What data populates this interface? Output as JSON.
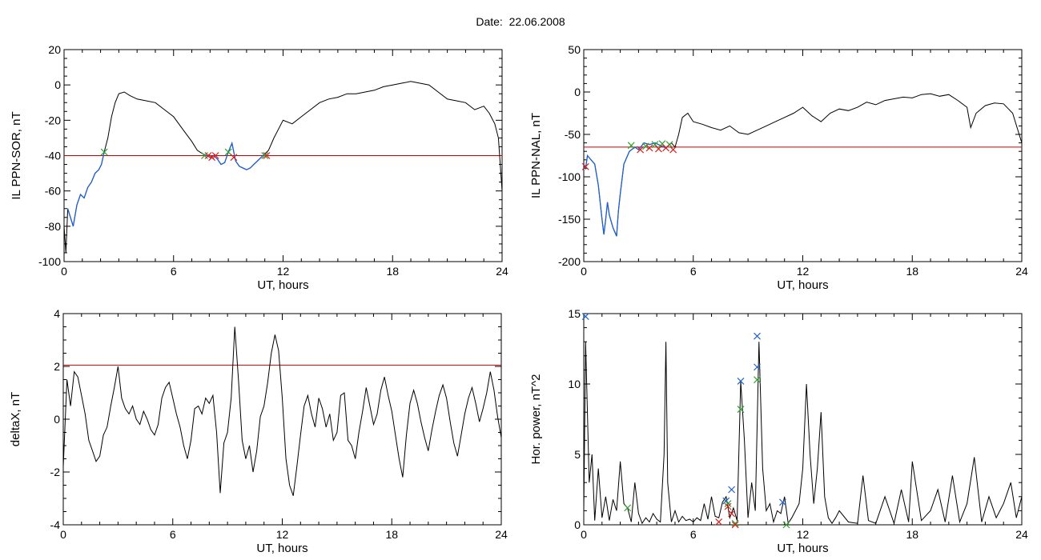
{
  "figure": {
    "title": "Date:  22.06.2008"
  },
  "colors": {
    "trace": "#000000",
    "threshold": "#cc0000",
    "segment": "#1f5fcf",
    "marker_green": "#2fa02f",
    "marker_red": "#d62020",
    "marker_blue": "#2060d0"
  },
  "chart_data": [
    {
      "type": "line",
      "panel": "top-left",
      "xlabel": "UT, hours",
      "ylabel": "IL PPN-SOR, nT",
      "xlim": [
        0,
        24
      ],
      "ylim": [
        -100,
        20
      ],
      "xticks": [
        0,
        6,
        12,
        18,
        24
      ],
      "yticks": [
        -100,
        -80,
        -60,
        -40,
        -20,
        0,
        20
      ],
      "grid": false,
      "threshold": -40,
      "series": [
        {
          "x": [
            0,
            0.1,
            0.2,
            0.35,
            0.5,
            0.7,
            0.9,
            1.1,
            1.3,
            1.5,
            1.7,
            1.9,
            2.05,
            2.2,
            2.4,
            2.6,
            2.8,
            3.0,
            3.3,
            3.6,
            4.0,
            4.5,
            5.0,
            5.5,
            6.0,
            6.5,
            7.0,
            7.3,
            7.6,
            7.8,
            8.0,
            8.2,
            8.4,
            8.6,
            8.8,
            9.0,
            9.2,
            9.4,
            9.6,
            9.8,
            10.0,
            10.2,
            10.4,
            10.6,
            10.8,
            11.0,
            11.2,
            11.5,
            11.8,
            12.0,
            12.5,
            13.0,
            13.5,
            14.0,
            14.5,
            15.0,
            15.5,
            16.0,
            16.5,
            17.0,
            17.5,
            18.0,
            18.5,
            19.0,
            19.5,
            20.0,
            20.5,
            21.0,
            21.5,
            22.0,
            22.5,
            23.0,
            23.3,
            23.6,
            23.8,
            24.0
          ],
          "y": [
            -80,
            -95,
            -70,
            -75,
            -80,
            -68,
            -62,
            -64,
            -58,
            -55,
            -50,
            -48,
            -45,
            -38,
            -30,
            -18,
            -10,
            -5,
            -4,
            -6,
            -8,
            -9,
            -10,
            -14,
            -18,
            -25,
            -32,
            -37,
            -39,
            -40,
            -41,
            -40,
            -42,
            -45,
            -44,
            -38,
            -33,
            -43,
            -46,
            -47,
            -48,
            -47,
            -45,
            -43,
            -41,
            -39,
            -37,
            -30,
            -24,
            -20,
            -22,
            -18,
            -14,
            -10,
            -8,
            -7,
            -5,
            -5,
            -4,
            -3,
            -1,
            0,
            1,
            2,
            1,
            0,
            -4,
            -8,
            -9,
            -10,
            -14,
            -12,
            -16,
            -22,
            -30,
            -60
          ]
        }
      ],
      "segments": [
        [
          0.2,
          2.2
        ],
        [
          7.6,
          11.0
        ]
      ],
      "markers": {
        "green_x": [
          [
            2.2,
            -38
          ],
          [
            7.7,
            -40
          ],
          [
            9.0,
            -38
          ],
          [
            11.0,
            -40
          ]
        ],
        "red_x": [
          [
            7.9,
            -40
          ],
          [
            8.1,
            -41
          ],
          [
            8.3,
            -40
          ],
          [
            9.3,
            -41
          ],
          [
            11.1,
            -40
          ]
        ]
      }
    },
    {
      "type": "line",
      "panel": "top-right",
      "xlabel": "UT, hours",
      "ylabel": "IL PPN-NAL, nT",
      "xlim": [
        0,
        24
      ],
      "ylim": [
        -200,
        50
      ],
      "xticks": [
        0,
        6,
        12,
        18,
        24
      ],
      "yticks": [
        -200,
        -150,
        -100,
        -50,
        0,
        50
      ],
      "grid": false,
      "threshold": -65,
      "series": [
        {
          "x": [
            0,
            0.1,
            0.2,
            0.4,
            0.6,
            0.8,
            1.0,
            1.1,
            1.2,
            1.3,
            1.4,
            1.6,
            1.8,
            1.9,
            2.0,
            2.2,
            2.5,
            2.8,
            3.0,
            3.3,
            3.6,
            3.9,
            4.2,
            4.5,
            4.8,
            5.0,
            5.2,
            5.4,
            5.7,
            6.0,
            6.5,
            7.0,
            7.5,
            8.0,
            8.5,
            9.0,
            9.5,
            10.0,
            10.5,
            11.0,
            11.5,
            12.0,
            12.5,
            13.0,
            13.5,
            14.0,
            14.5,
            15.0,
            15.5,
            16.0,
            16.5,
            17.0,
            17.5,
            18.0,
            18.5,
            19.0,
            19.5,
            20.0,
            20.5,
            21.0,
            21.2,
            21.5,
            22.0,
            22.5,
            23.0,
            23.5,
            24.0
          ],
          "y": [
            -85,
            -90,
            -75,
            -80,
            -85,
            -110,
            -150,
            -168,
            -150,
            -130,
            -145,
            -160,
            -170,
            -140,
            -120,
            -85,
            -70,
            -65,
            -68,
            -60,
            -62,
            -60,
            -63,
            -66,
            -60,
            -65,
            -50,
            -30,
            -25,
            -35,
            -38,
            -42,
            -45,
            -40,
            -48,
            -50,
            -45,
            -40,
            -35,
            -30,
            -25,
            -18,
            -28,
            -35,
            -25,
            -20,
            -22,
            -18,
            -12,
            -15,
            -10,
            -8,
            -6,
            -7,
            -3,
            -2,
            -5,
            -3,
            -10,
            -18,
            -42,
            -25,
            -16,
            -13,
            -14,
            -25,
            -60
          ]
        }
      ],
      "segments": [
        [
          0,
          4.9
        ]
      ],
      "markers": {
        "green_x": [
          [
            2.6,
            -63
          ],
          [
            3.4,
            -64
          ],
          [
            3.9,
            -62
          ],
          [
            4.3,
            -61
          ],
          [
            4.7,
            -62
          ]
        ],
        "red_x": [
          [
            0.1,
            -88
          ],
          [
            3.1,
            -68
          ],
          [
            3.6,
            -66
          ],
          [
            4.1,
            -67
          ],
          [
            4.5,
            -66
          ],
          [
            4.9,
            -68
          ]
        ]
      }
    },
    {
      "type": "line",
      "panel": "bottom-left",
      "xlabel": "UT, hours",
      "ylabel": "deltaX, nT",
      "xlim": [
        0,
        24
      ],
      "ylim": [
        -4,
        4
      ],
      "xticks": [
        0,
        6,
        12,
        18,
        24
      ],
      "yticks": [
        -4,
        -2,
        0,
        2,
        4
      ],
      "grid": false,
      "threshold": 2.05,
      "series": [
        {
          "x": [
            0,
            0.2,
            0.4,
            0.6,
            0.8,
            1.0,
            1.2,
            1.4,
            1.6,
            1.8,
            2.0,
            2.2,
            2.4,
            2.6,
            2.8,
            3.0,
            3.2,
            3.4,
            3.6,
            3.8,
            4.0,
            4.2,
            4.4,
            4.6,
            4.8,
            5.0,
            5.2,
            5.4,
            5.6,
            5.8,
            6.0,
            6.2,
            6.4,
            6.6,
            6.8,
            7.0,
            7.2,
            7.4,
            7.6,
            7.8,
            8.0,
            8.2,
            8.4,
            8.6,
            8.8,
            9.0,
            9.2,
            9.4,
            9.6,
            9.8,
            10.0,
            10.2,
            10.4,
            10.6,
            10.8,
            11.0,
            11.2,
            11.4,
            11.6,
            11.8,
            12.0,
            12.2,
            12.4,
            12.6,
            12.8,
            13.0,
            13.2,
            13.4,
            13.6,
            13.8,
            14.0,
            14.2,
            14.4,
            14.6,
            14.8,
            15.0,
            15.2,
            15.4,
            15.6,
            15.8,
            16.0,
            16.2,
            16.4,
            16.6,
            16.8,
            17.0,
            17.2,
            17.4,
            17.6,
            17.8,
            18.0,
            18.2,
            18.4,
            18.6,
            18.8,
            19.0,
            19.2,
            19.4,
            19.6,
            19.8,
            20.0,
            20.2,
            20.4,
            20.6,
            20.8,
            21.0,
            21.2,
            21.4,
            21.6,
            21.8,
            22.0,
            22.2,
            22.4,
            22.6,
            22.8,
            23.0,
            23.2,
            23.4,
            23.6,
            23.8,
            24.0
          ],
          "y": [
            -1.8,
            1.5,
            0.5,
            1.8,
            1.6,
            0.9,
            0.2,
            -0.8,
            -1.2,
            -1.6,
            -1.4,
            -0.6,
            -0.3,
            0.5,
            1.2,
            2.0,
            0.8,
            0.4,
            0.2,
            0.5,
            0.0,
            -0.2,
            0.3,
            0.0,
            -0.4,
            -0.6,
            -0.2,
            0.8,
            1.2,
            1.4,
            0.8,
            0.2,
            -0.3,
            -1.0,
            -1.5,
            -0.8,
            0.4,
            0.5,
            0.2,
            0.8,
            0.6,
            0.9,
            -0.5,
            -2.8,
            -0.9,
            -0.5,
            0.8,
            3.5,
            1.5,
            -0.8,
            -1.5,
            -1.0,
            -2.0,
            -1.2,
            0.1,
            0.5,
            1.4,
            2.5,
            3.2,
            2.6,
            0.8,
            -1.5,
            -2.5,
            -2.9,
            -1.8,
            -0.6,
            0.5,
            0.9,
            0.2,
            -0.3,
            0.8,
            0.4,
            -0.3,
            0.2,
            -0.8,
            -0.5,
            0.9,
            1.0,
            -0.8,
            -1.0,
            -1.5,
            -0.5,
            0.3,
            1.2,
            0.5,
            -0.2,
            0.2,
            1.1,
            1.6,
            0.9,
            0.3,
            -0.6,
            -1.5,
            -2.2,
            -0.6,
            0.6,
            1.1,
            0.6,
            -0.1,
            -0.7,
            -1.2,
            -0.4,
            0.3,
            0.9,
            1.3,
            0.8,
            -0.1,
            -0.9,
            -1.4,
            -0.6,
            0.2,
            0.8,
            1.2,
            0.6,
            -0.1,
            0.4,
            1.0,
            1.8,
            1.1,
            0.1,
            -0.7
          ]
        }
      ]
    },
    {
      "type": "line",
      "panel": "bottom-right",
      "xlabel": "UT, hours",
      "ylabel": "Hor. power, nT^2",
      "xlim": [
        0,
        24
      ],
      "ylim": [
        0,
        15
      ],
      "xticks": [
        0,
        6,
        12,
        18,
        24
      ],
      "yticks": [
        0,
        5,
        10,
        15
      ],
      "grid": false,
      "series": [
        {
          "x": [
            0,
            0.1,
            0.3,
            0.45,
            0.6,
            0.8,
            1.0,
            1.2,
            1.4,
            1.6,
            1.8,
            2.0,
            2.2,
            2.4,
            2.6,
            2.8,
            3.0,
            3.2,
            3.4,
            3.6,
            3.8,
            4.0,
            4.2,
            4.4,
            4.5,
            4.6,
            4.8,
            5.0,
            5.2,
            5.4,
            5.6,
            5.8,
            6.0,
            6.2,
            6.4,
            6.6,
            6.8,
            7.0,
            7.2,
            7.4,
            7.6,
            7.8,
            8.0,
            8.2,
            8.4,
            8.6,
            8.8,
            9.0,
            9.2,
            9.4,
            9.6,
            9.8,
            10.0,
            10.2,
            10.4,
            10.6,
            10.8,
            11.0,
            11.2,
            11.4,
            11.6,
            11.8,
            12.0,
            12.2,
            12.4,
            12.6,
            12.8,
            13.0,
            13.2,
            13.4,
            13.6,
            13.8,
            14.0,
            14.5,
            15.0,
            15.3,
            15.6,
            16.0,
            16.5,
            17.0,
            17.4,
            17.8,
            18.0,
            18.5,
            19.0,
            19.4,
            19.8,
            20.2,
            20.6,
            21.0,
            21.4,
            21.8,
            22.2,
            22.6,
            23.0,
            23.4,
            23.7,
            24.0
          ],
          "y": [
            1.0,
            13.0,
            3.0,
            5.0,
            0.3,
            4.0,
            0.5,
            2.0,
            0.3,
            1.8,
            1.0,
            4.5,
            1.5,
            1.2,
            0.2,
            3.0,
            0.8,
            0.1,
            0.5,
            0.2,
            0.8,
            0.4,
            0.2,
            5.0,
            13.0,
            3.0,
            0.2,
            1.0,
            0.2,
            0.6,
            0.3,
            0.4,
            0.2,
            0.5,
            0.3,
            1.5,
            0.4,
            2.0,
            0.6,
            0.5,
            1.6,
            2.0,
            0.5,
            1.2,
            0.3,
            10.2,
            6.0,
            0.5,
            3.0,
            1.0,
            13.0,
            4.0,
            1.0,
            1.5,
            0.2,
            1.0,
            0.8,
            2.0,
            0.1,
            0.5,
            1.0,
            1.5,
            4.0,
            10.0,
            5.0,
            1.5,
            4.0,
            8.0,
            2.0,
            0.5,
            0.1,
            0.5,
            1.0,
            0.2,
            0.1,
            3.5,
            0.3,
            0.1,
            2.0,
            0.1,
            2.5,
            0.2,
            4.5,
            0.3,
            1.0,
            2.5,
            0.2,
            3.5,
            0.2,
            1.5,
            4.8,
            0.2,
            2.0,
            0.5,
            1.5,
            3.0,
            0.5,
            2.0
          ]
        }
      ],
      "markers": {
        "blue_x": [
          [
            0.1,
            14.8
          ],
          [
            7.8,
            1.7
          ],
          [
            8.1,
            2.5
          ],
          [
            8.6,
            10.2
          ],
          [
            9.5,
            13.4
          ],
          [
            9.5,
            11.2
          ],
          [
            10.9,
            1.6
          ]
        ],
        "green_x": [
          [
            2.4,
            1.2
          ],
          [
            7.9,
            1.5
          ],
          [
            8.3,
            0.1
          ],
          [
            8.6,
            8.2
          ],
          [
            9.5,
            10.3
          ],
          [
            11.1,
            0.0
          ]
        ],
        "red_x": [
          [
            7.4,
            0.2
          ],
          [
            7.9,
            1.3
          ],
          [
            8.1,
            0.8
          ],
          [
            8.3,
            0.0
          ]
        ]
      }
    }
  ]
}
